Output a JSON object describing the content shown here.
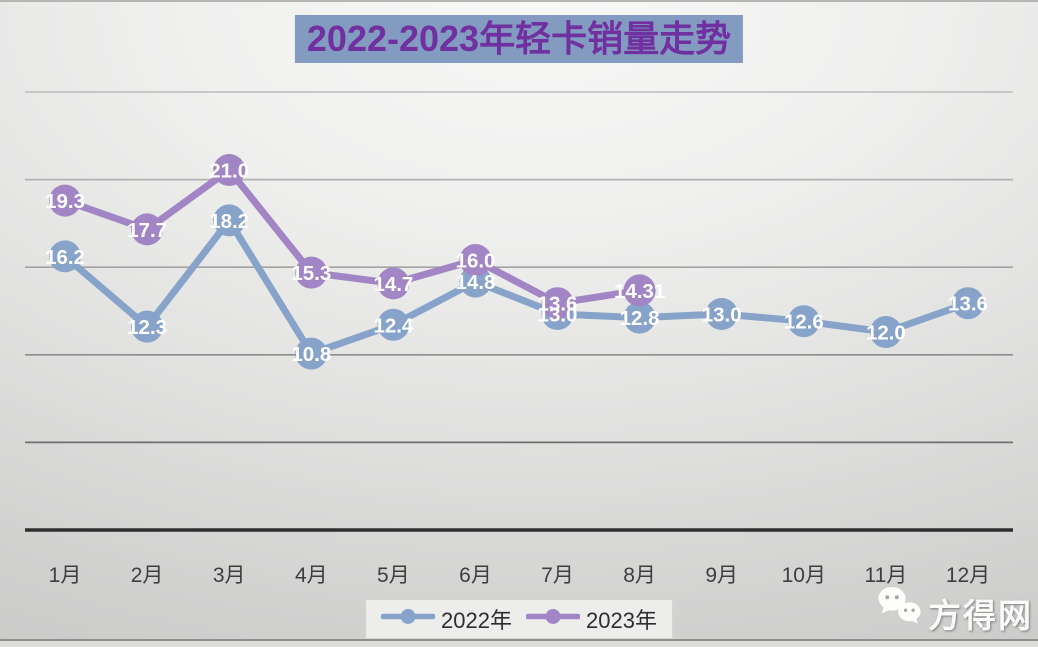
{
  "page": {
    "title_label": "2022-2023年轻卡销量走势"
  },
  "colors": {
    "title_text": "#7030a0",
    "title_bg": "#839ac1",
    "series_2022": "#87a3c9",
    "series_2023": "#a285c4",
    "axis": "#2f2f2f",
    "data_label_text": "#ffffff",
    "tick_text": "#3e3e3e"
  },
  "chart_data": {
    "type": "line",
    "title": "2022-2023年轻卡销量走势",
    "categories": [
      "1月",
      "2月",
      "3月",
      "4月",
      "5月",
      "6月",
      "7月",
      "8月",
      "9月",
      "10月",
      "11月",
      "12月"
    ],
    "series": [
      {
        "name": "2022年",
        "color": "#87a3c9",
        "values": [
          16.2,
          12.3,
          18.2,
          10.8,
          12.4,
          14.8,
          13.0,
          12.8,
          13.0,
          12.6,
          12.0,
          13.6
        ],
        "labels": [
          "16.2",
          "12.3",
          "18.2",
          "10.8",
          "12.4",
          "14.8",
          "13.0",
          "12.8",
          "13.0",
          "12.6",
          "12.0",
          "13.6"
        ]
      },
      {
        "name": "2023年",
        "color": "#a285c4",
        "values": [
          19.3,
          17.7,
          21.0,
          15.3,
          14.7,
          16.0,
          13.6,
          14.31
        ],
        "labels": [
          "19.3",
          "17.7",
          "21.0",
          "15.3",
          "14.7",
          "16.0",
          "13.6",
          "14.31"
        ]
      }
    ],
    "xlabel": "",
    "ylabel": "",
    "ylim": [
      0,
      25
    ],
    "gridlines": {
      "count": 5,
      "visible": true
    },
    "y_axis_labels_visible": false,
    "data_labels": true,
    "marker_style": "circle",
    "legend_position": "bottom"
  },
  "legend": {
    "items": [
      {
        "label": "2022年",
        "color": "#87a3c9"
      },
      {
        "label": "2023年",
        "color": "#a285c4"
      }
    ]
  },
  "watermark": {
    "text": "方得网",
    "icon": "wechat-icon"
  }
}
